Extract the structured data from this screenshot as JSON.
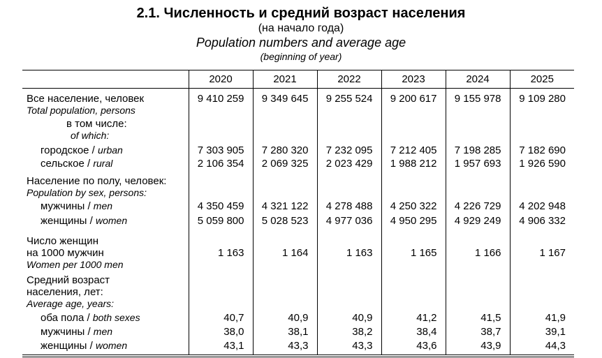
{
  "title": {
    "line1": "2.1. Численность и средний возраст населения",
    "line2": "(на начало года)",
    "line3": "Population numbers and average age",
    "line4": "(beginning of year)"
  },
  "table": {
    "years": [
      "2020",
      "2021",
      "2022",
      "2023",
      "2024",
      "2025"
    ],
    "rows": [
      {
        "ru": "Все население, человек",
        "en": "Total population, persons",
        "values": [
          "9 410 259",
          "9 349 645",
          "9 255 524",
          "9 200 617",
          "9 155 978",
          "9 109 280"
        ]
      },
      {
        "ru": "в том числе:",
        "en": "of which:",
        "values": []
      },
      {
        "ru": "городское /",
        "en": "urban",
        "values": [
          "7 303 905",
          "7 280 320",
          "7 232 095",
          "7 212 405",
          "7 198 285",
          "7 182 690"
        ]
      },
      {
        "ru": "сельское /",
        "en": "rural",
        "values": [
          "2 106 354",
          "2 069 325",
          "2 023 429",
          "1 988 212",
          "1 957 693",
          "1 926 590"
        ]
      },
      {
        "ru": "Население по полу, человек:",
        "en": "Population by sex, persons:",
        "values": []
      },
      {
        "ru": "мужчины /",
        "en": "men",
        "values": [
          "4 350 459",
          "4 321 122",
          "4 278 488",
          "4 250 322",
          "4 226 729",
          "4 202 948"
        ]
      },
      {
        "ru": "женщины /",
        "en": "women",
        "values": [
          "5 059 800",
          "5 028 523",
          "4 977 036",
          "4 950 295",
          "4 929 249",
          "4 906 332"
        ]
      },
      {
        "ru": "Число женщин\nна 1000 мужчин",
        "en": "Women per 1000 men",
        "values": [
          "1 163",
          "1 164",
          "1 163",
          "1 165",
          "1 166",
          "1 167"
        ]
      },
      {
        "ru": "Средний возраст\nнаселения, лет:",
        "en": "Average age, years:",
        "values": []
      },
      {
        "ru": "оба пола /",
        "en": "both sexes",
        "values": [
          "40,7",
          "40,9",
          "40,9",
          "41,2",
          "41,5",
          "41,9"
        ]
      },
      {
        "ru": "мужчины /",
        "en": "men",
        "values": [
          "38,0",
          "38,1",
          "38,2",
          "38,4",
          "38,7",
          "39,1"
        ]
      },
      {
        "ru": "женщины /",
        "en": "women",
        "values": [
          "43,1",
          "43,3",
          "43,3",
          "43,6",
          "43,9",
          "44,3"
        ]
      }
    ]
  }
}
